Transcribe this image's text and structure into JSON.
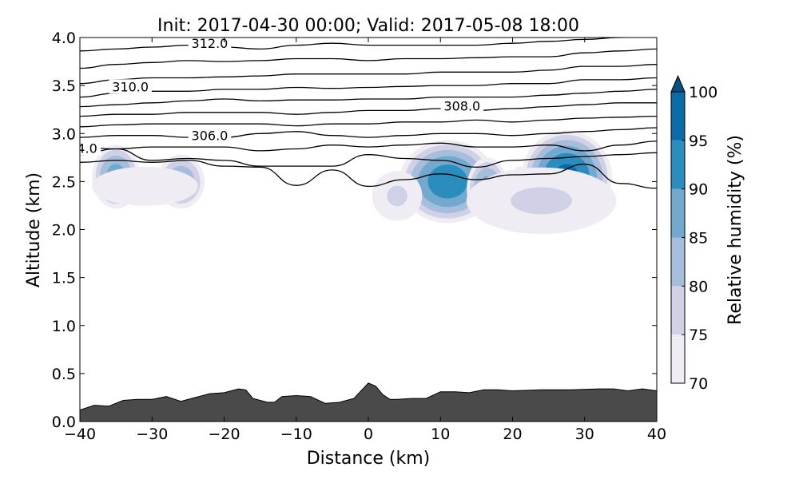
{
  "chart_data": {
    "type": "contourf-cross-section",
    "title": "Init: 2017-04-30 00:00; Valid: 2017-05-08 18:00",
    "xlabel": "Distance (km)",
    "ylabel": "Altitude (km)",
    "xlim": [
      -40,
      40
    ],
    "ylim": [
      0.0,
      4.0
    ],
    "xticks": [
      -40,
      -30,
      -20,
      -10,
      0,
      10,
      20,
      30,
      40
    ],
    "xtick_labels": [
      "−40",
      "−30",
      "−20",
      "−10",
      "0",
      "10",
      "20",
      "30",
      "40"
    ],
    "yticks": [
      0.0,
      0.5,
      1.0,
      1.5,
      2.0,
      2.5,
      3.0,
      3.5,
      4.0
    ],
    "ytick_labels": [
      "0.0",
      "0.5",
      "1.0",
      "1.5",
      "2.0",
      "2.5",
      "3.0",
      "3.5",
      "4.0"
    ],
    "colorbar": {
      "label": "Relative humidity (%)",
      "levels": [
        70,
        75,
        80,
        85,
        90,
        95,
        100
      ],
      "tick_labels": [
        "70",
        "75",
        "80",
        "85",
        "90",
        "95",
        "100"
      ],
      "colors": [
        "#f0ecf4",
        "#d0d1e6",
        "#a6bddb",
        "#74a9cf",
        "#2b8cbe",
        "#0b6aa8",
        "#0b4f80"
      ],
      "extend": "max"
    },
    "terrain": {
      "color": "#4a4a4a",
      "x": [
        -40,
        -38,
        -36,
        -34,
        -32,
        -30,
        -28,
        -26,
        -24,
        -22,
        -20,
        -18,
        -17,
        -16,
        -14,
        -13,
        -12,
        -10,
        -8,
        -6,
        -4,
        -2,
        0,
        1,
        2,
        3,
        4,
        6,
        8,
        10,
        12,
        14,
        16,
        18,
        20,
        24,
        28,
        32,
        34,
        36,
        38,
        40
      ],
      "y": [
        0.12,
        0.17,
        0.16,
        0.22,
        0.23,
        0.23,
        0.26,
        0.21,
        0.25,
        0.29,
        0.3,
        0.34,
        0.33,
        0.24,
        0.2,
        0.2,
        0.26,
        0.27,
        0.26,
        0.19,
        0.2,
        0.24,
        0.4,
        0.37,
        0.28,
        0.23,
        0.23,
        0.24,
        0.24,
        0.31,
        0.31,
        0.3,
        0.33,
        0.33,
        0.32,
        0.33,
        0.33,
        0.34,
        0.34,
        0.32,
        0.34,
        0.32
      ]
    },
    "rh_blobs": [
      {
        "x": -35,
        "y": 2.55,
        "rx": 3.5,
        "ry": 0.35,
        "peak": 88
      },
      {
        "x": -26,
        "y": 2.5,
        "rx": 3.5,
        "ry": 0.3,
        "peak": 85
      },
      {
        "x": 11,
        "y": 2.5,
        "rx": 7.0,
        "ry": 0.45,
        "peak": 94
      },
      {
        "x": 16.5,
        "y": 2.42,
        "rx": 3.0,
        "ry": 0.35,
        "peak": 88
      },
      {
        "x": 21,
        "y": 2.38,
        "rx": 2.0,
        "ry": 0.3,
        "peak": 81
      },
      {
        "x": 27.5,
        "y": 2.55,
        "rx": 6.5,
        "ry": 0.5,
        "peak": 97
      },
      {
        "x": 24,
        "y": 2.3,
        "rx": 12.0,
        "ry": 0.4,
        "peak": 76
      },
      {
        "x": -31,
        "y": 2.45,
        "rx": 9.0,
        "ry": 0.25,
        "peak": 74
      },
      {
        "x": 4,
        "y": 2.35,
        "rx": 4.0,
        "ry": 0.3,
        "peak": 76
      }
    ],
    "theta_contours": {
      "x": [
        -40,
        -35,
        -30,
        -25,
        -20,
        -15,
        -10,
        -5,
        0,
        5,
        10,
        15,
        20,
        25,
        30,
        35,
        40
      ],
      "lines": [
        {
          "y": [
            2.7,
            2.72,
            2.7,
            2.72,
            2.66,
            2.65,
            2.46,
            2.62,
            2.45,
            2.52,
            2.58,
            2.52,
            2.57,
            2.58,
            2.68,
            2.48,
            2.43
          ]
        },
        {
          "y": [
            2.78,
            2.84,
            2.72,
            2.74,
            2.72,
            2.66,
            2.66,
            2.66,
            2.78,
            2.74,
            2.72,
            2.65,
            2.72,
            2.74,
            2.76,
            2.78,
            2.8
          ]
        },
        {
          "y": [
            2.86,
            2.84,
            2.86,
            2.86,
            2.86,
            2.82,
            2.84,
            2.88,
            2.86,
            2.88,
            2.9,
            2.86,
            2.86,
            2.88,
            2.82,
            2.88,
            2.92
          ]
        },
        {
          "y": [
            2.96,
            2.98,
            2.98,
            2.96,
            2.96,
            3.0,
            3.02,
            2.98,
            2.96,
            2.98,
            3.0,
            3.0,
            2.98,
            3.0,
            3.02,
            3.04,
            3.06
          ]
        },
        {
          "y": [
            3.07,
            3.09,
            3.1,
            3.1,
            3.1,
            3.1,
            3.08,
            3.1,
            3.1,
            3.12,
            3.12,
            3.14,
            3.12,
            3.14,
            3.16,
            3.17,
            3.18
          ]
        },
        {
          "y": [
            3.18,
            3.2,
            3.2,
            3.22,
            3.22,
            3.22,
            3.2,
            3.22,
            3.24,
            3.24,
            3.26,
            3.24,
            3.26,
            3.28,
            3.3,
            3.32,
            3.32
          ]
        },
        {
          "y": [
            3.28,
            3.3,
            3.32,
            3.34,
            3.36,
            3.34,
            3.35,
            3.35,
            3.36,
            3.36,
            3.38,
            3.38,
            3.38,
            3.4,
            3.42,
            3.44,
            3.46
          ]
        },
        {
          "y": [
            3.38,
            3.42,
            3.44,
            3.44,
            3.46,
            3.46,
            3.48,
            3.47,
            3.48,
            3.49,
            3.5,
            3.5,
            3.52,
            3.52,
            3.56,
            3.56,
            3.58
          ]
        },
        {
          "y": [
            3.52,
            3.56,
            3.58,
            3.58,
            3.59,
            3.6,
            3.62,
            3.62,
            3.62,
            3.62,
            3.64,
            3.64,
            3.64,
            3.66,
            3.7,
            3.7,
            3.72
          ]
        },
        {
          "y": [
            3.68,
            3.72,
            3.74,
            3.76,
            3.75,
            3.76,
            3.78,
            3.78,
            3.76,
            3.78,
            3.78,
            3.79,
            3.8,
            3.8,
            3.84,
            3.86,
            3.88
          ]
        },
        {
          "y": [
            3.86,
            3.88,
            3.9,
            3.92,
            3.9,
            3.88,
            3.92,
            3.94,
            3.92,
            3.92,
            3.92,
            3.92,
            3.94,
            3.96,
            3.98,
            4.0,
            4.02
          ]
        }
      ],
      "labels": [
        {
          "text": "312.0",
          "x": -22,
          "y": 3.94
        },
        {
          "text": "310.0",
          "x": -33,
          "y": 3.49
        },
        {
          "text": "308.0",
          "x": 13,
          "y": 3.29
        },
        {
          "text": "306.0",
          "x": -22,
          "y": 2.98
        },
        {
          "text": "4.0",
          "x": -39,
          "y": 2.85
        }
      ]
    }
  }
}
